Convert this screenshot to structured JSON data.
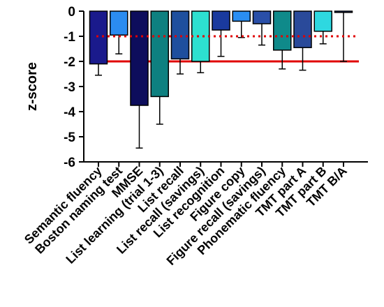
{
  "chart_data": {
    "type": "bar",
    "title": "",
    "xlabel": "",
    "ylabel": "z-score",
    "ylim": [
      -6,
      0
    ],
    "yticks": [
      "0",
      "-1",
      "-2",
      "-3",
      "-4",
      "-5",
      "-6"
    ],
    "ytick_values": [
      0,
      -1,
      -2,
      -3,
      -4,
      -5,
      -6
    ],
    "grid": false,
    "legend": "none",
    "categories": [
      "Semantic fluency",
      "Boston naming test",
      "MMSE",
      "List  learning (trial 1-3)",
      "List recall",
      "List recall (savings)",
      "List  recognition",
      "Figure copy",
      "Figure recall (savings)",
      "Phonematic fluency",
      "TMT part A",
      "TMT part B",
      "TMT B/A"
    ],
    "values": [
      -2.1,
      -0.95,
      -3.75,
      -3.4,
      -1.9,
      -2.0,
      -0.75,
      -0.4,
      -0.5,
      -1.55,
      -1.45,
      -0.8,
      -0.05
    ],
    "error": [
      0.45,
      0.75,
      1.7,
      1.1,
      0.6,
      0.45,
      1.05,
      0.65,
      0.85,
      0.75,
      0.9,
      0.5,
      1.95
    ],
    "bar_colors": [
      "#1a1a8c",
      "#2b8cf0",
      "#0d0d5c",
      "#0e8080",
      "#1e4f9e",
      "#2de0d0",
      "#1a3a9e",
      "#2a8ef2",
      "#2a4fa8",
      "#0f8a8a",
      "#2a4a9a",
      "#2ed8e0",
      "#2a4aa8"
    ],
    "reference_lines": [
      {
        "y": -1,
        "style": "dotted",
        "color": "#e00000"
      },
      {
        "y": -2,
        "style": "solid",
        "color": "#e00000"
      }
    ]
  }
}
